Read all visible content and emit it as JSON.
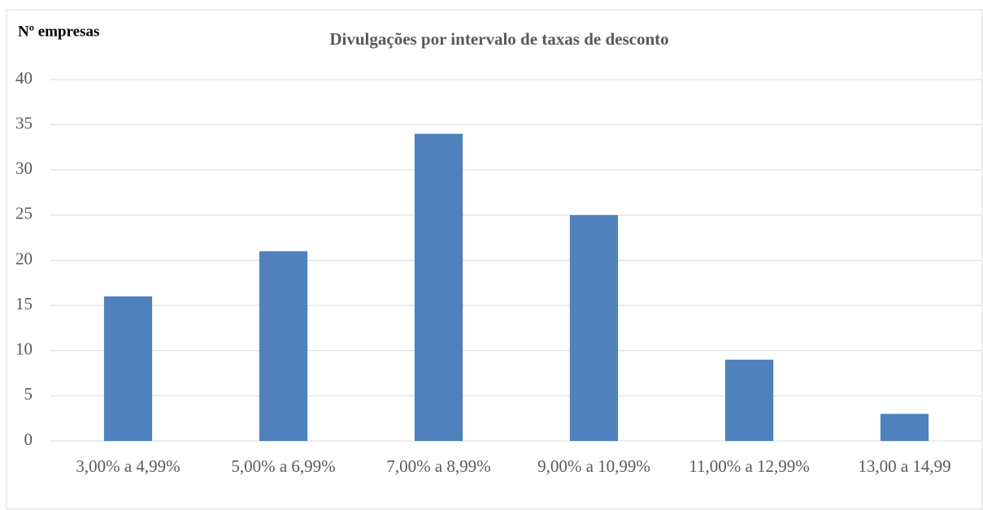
{
  "chart_data": {
    "type": "bar",
    "title": "Divulgações por intervalo de taxas de desconto",
    "y_label": "Nº empresas",
    "categories": [
      "3,00% a 4,99%",
      "5,00% a 6,99%",
      "7,00% a 8,99%",
      "9,00% a 10,99%",
      "11,00% a 12,99%",
      "13,00 a 14,99"
    ],
    "values": [
      16,
      21,
      34,
      25,
      9,
      3
    ],
    "color": "#4f81bd",
    "ylim": [
      0,
      40
    ],
    "yticks": [
      0,
      5,
      10,
      15,
      20,
      25,
      30,
      35,
      40
    ],
    "grid": true
  }
}
